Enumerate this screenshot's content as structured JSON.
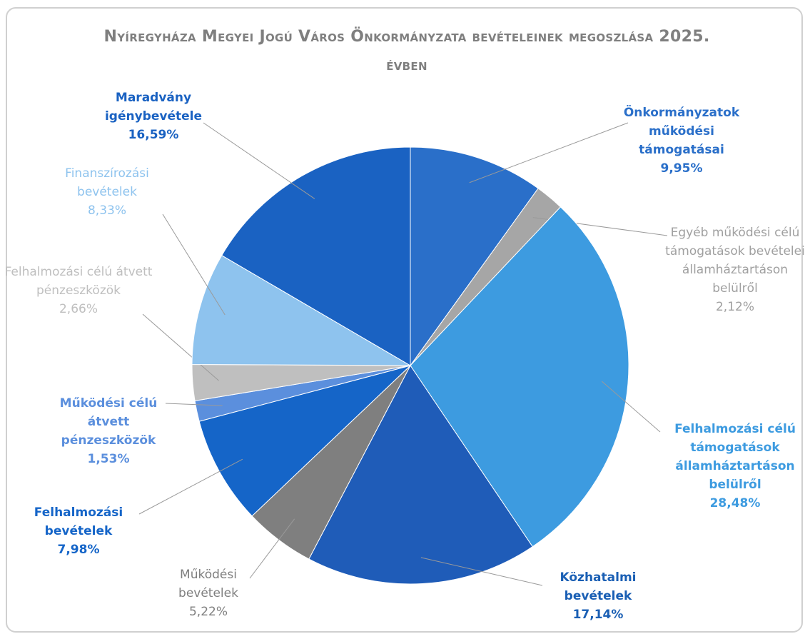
{
  "chart_data": {
    "type": "pie",
    "title": "Nyíregyháza Megyei Jogú Város Önkormányzata bevételeinek megoszlása 2025. évben",
    "categories": [
      "Önkormányzatok működési támogatásai",
      "Egyéb működési célú támogatások bevételei államháztartáson belülről",
      "Felhalmozási célú támogatások államháztartáson belülről",
      "Közhatalmi bevételek",
      "Működési bevételek",
      "Felhalmozási bevételek",
      "Működési célú átvett pénzeszközök",
      "Felhalmozási célú átvett pénzeszközök",
      "Finanszírozási bevételek",
      "Maradvány igénybevétele"
    ],
    "values": [
      9.95,
      2.12,
      28.48,
      17.14,
      5.22,
      7.98,
      1.53,
      2.66,
      8.33,
      16.59
    ],
    "value_labels": [
      "9,95%",
      "2,12%",
      "28,48%",
      "17,14%",
      "5,22%",
      "7,98%",
      "1,53%",
      "2,66%",
      "8,33%",
      "16,59%"
    ],
    "colors": [
      "#2a6fc9",
      "#a6a6a6",
      "#3d9be0",
      "#1f5cb8",
      "#7f7f7f",
      "#1565c8",
      "#5b8fdd",
      "#bfbfbf",
      "#8ec3ee",
      "#1a62c2"
    ]
  }
}
